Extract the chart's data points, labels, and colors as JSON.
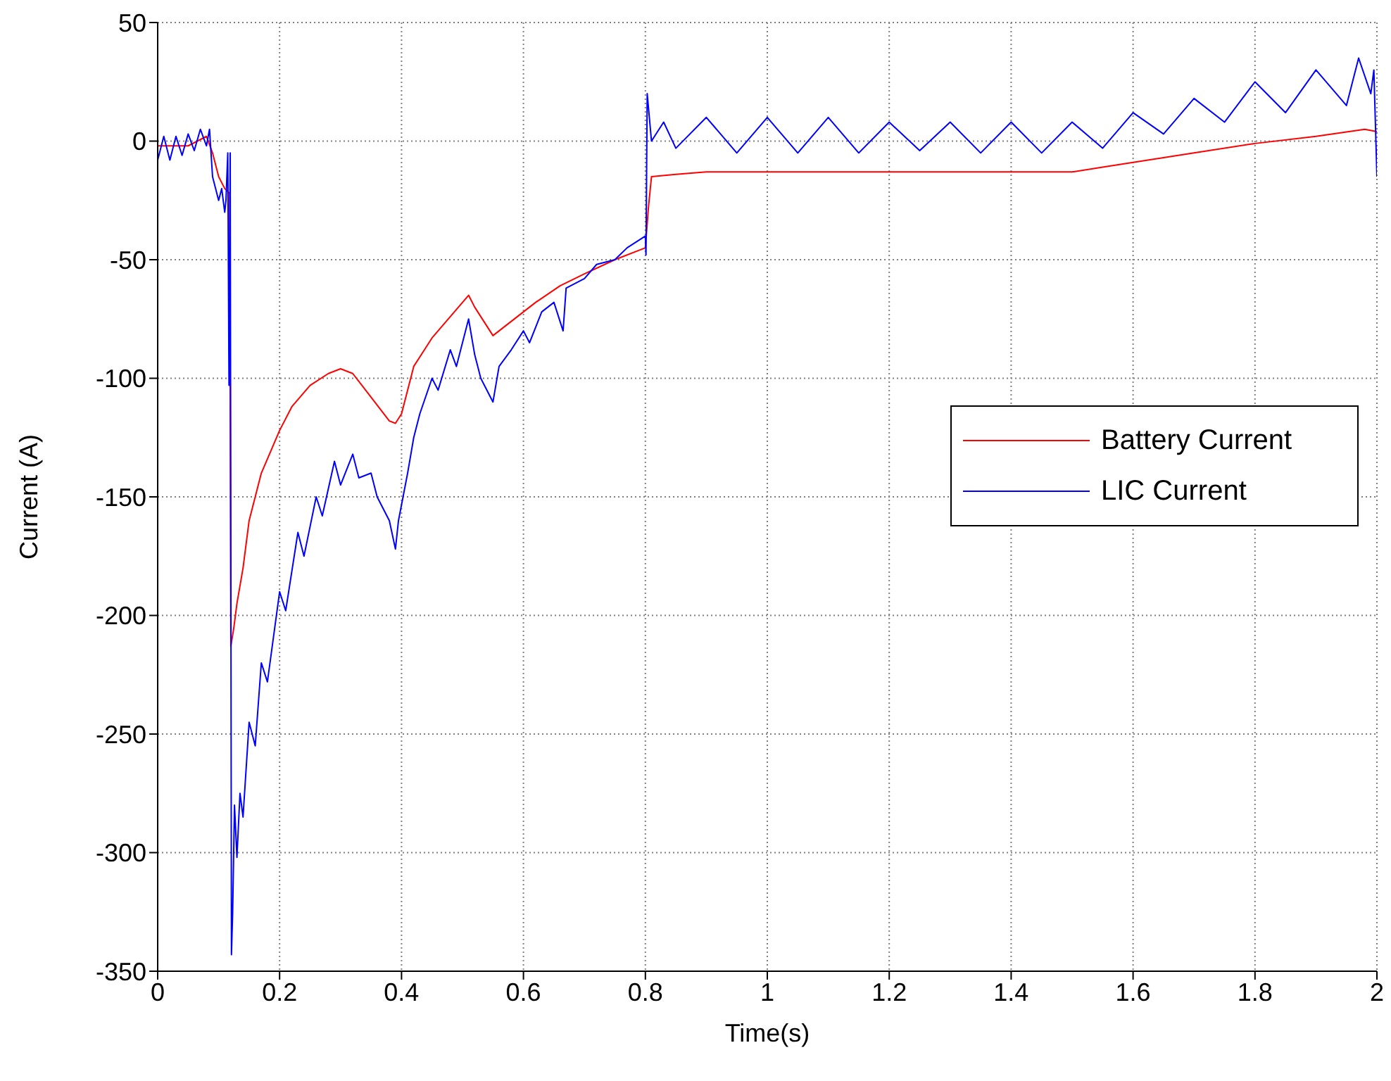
{
  "chart_data": {
    "type": "line",
    "xlabel": "Time(s)",
    "ylabel": "Current (A)",
    "xlim": [
      0,
      2
    ],
    "xticks": [
      0,
      0.2,
      0.4,
      0.6,
      0.8,
      1,
      1.2,
      1.4,
      1.6,
      1.8,
      2
    ],
    "ylim": [
      -350,
      50
    ],
    "yticks": [
      -350,
      -300,
      -250,
      -200,
      -150,
      -100,
      -50,
      0,
      50
    ],
    "grid": true,
    "legend": "right",
    "marker": "none",
    "line_style": "solid",
    "series": [
      {
        "name": "Battery Current",
        "color": "#ff0000",
        "x": [
          0,
          0.05,
          0.08,
          0.09,
          0.1,
          0.11,
          0.118,
          0.12,
          0.125,
          0.13,
          0.14,
          0.15,
          0.17,
          0.2,
          0.22,
          0.25,
          0.28,
          0.3,
          0.32,
          0.35,
          0.38,
          0.39,
          0.4,
          0.42,
          0.45,
          0.48,
          0.51,
          0.52,
          0.55,
          0.58,
          0.62,
          0.66,
          0.7,
          0.75,
          0.8,
          0.805,
          0.81,
          0.85,
          0.9,
          1,
          1.2,
          1.4,
          1.5,
          1.55,
          1.6,
          1.7,
          1.8,
          1.9,
          1.98,
          2
        ],
        "values": [
          -2,
          -2,
          2,
          -5,
          -15,
          -20,
          -22,
          -213,
          -205,
          -195,
          -180,
          -160,
          -140,
          -122,
          -112,
          -103,
          -98,
          -96,
          -98,
          -108,
          -118,
          -119,
          -115,
          -95,
          -83,
          -74,
          -65,
          -70,
          -82,
          -76,
          -68,
          -61,
          -56,
          -50,
          -45,
          -28,
          -15,
          -14,
          -13,
          -13,
          -13,
          -13,
          -13,
          -11,
          -9,
          -5,
          -1,
          2,
          5,
          4
        ]
      },
      {
        "name": "LIC Current",
        "color": "#0000ff",
        "x": [
          0,
          0.01,
          0.02,
          0.03,
          0.04,
          0.05,
          0.06,
          0.07,
          0.08,
          0.085,
          0.09,
          0.1,
          0.105,
          0.11,
          0.112,
          0.115,
          0.117,
          0.119,
          0.121,
          0.123,
          0.126,
          0.13,
          0.135,
          0.14,
          0.15,
          0.16,
          0.17,
          0.18,
          0.2,
          0.21,
          0.23,
          0.24,
          0.26,
          0.27,
          0.29,
          0.3,
          0.32,
          0.33,
          0.35,
          0.36,
          0.38,
          0.39,
          0.395,
          0.41,
          0.42,
          0.43,
          0.45,
          0.46,
          0.48,
          0.49,
          0.51,
          0.52,
          0.53,
          0.55,
          0.56,
          0.58,
          0.6,
          0.61,
          0.63,
          0.65,
          0.665,
          0.67,
          0.7,
          0.72,
          0.75,
          0.77,
          0.8,
          0.801,
          0.803,
          0.81,
          0.83,
          0.85,
          0.9,
          0.95,
          1,
          1.05,
          1.1,
          1.15,
          1.2,
          1.25,
          1.3,
          1.35,
          1.4,
          1.45,
          1.5,
          1.55,
          1.6,
          1.65,
          1.7,
          1.75,
          1.8,
          1.85,
          1.9,
          1.95,
          1.97,
          1.99,
          1.995,
          2
        ],
        "values": [
          -8,
          2,
          -8,
          2,
          -6,
          3,
          -4,
          5,
          -2,
          5,
          -15,
          -25,
          -20,
          -30,
          -25,
          -5,
          -103,
          -5,
          -343,
          -325,
          -280,
          -302,
          -275,
          -285,
          -245,
          -255,
          -220,
          -228,
          -190,
          -198,
          -165,
          -175,
          -150,
          -158,
          -135,
          -145,
          -132,
          -142,
          -140,
          -150,
          -160,
          -172,
          -160,
          -140,
          -125,
          -115,
          -100,
          -105,
          -88,
          -95,
          -75,
          -90,
          -100,
          -110,
          -95,
          -88,
          -80,
          -85,
          -72,
          -68,
          -80,
          -62,
          -58,
          -52,
          -50,
          -45,
          -40,
          -48,
          20,
          0,
          8,
          -3,
          10,
          -5,
          10,
          -5,
          10,
          -5,
          8,
          -4,
          8,
          -5,
          8,
          -5,
          8,
          -3,
          12,
          3,
          18,
          8,
          25,
          12,
          30,
          15,
          35,
          20,
          30,
          -15
        ]
      }
    ]
  }
}
